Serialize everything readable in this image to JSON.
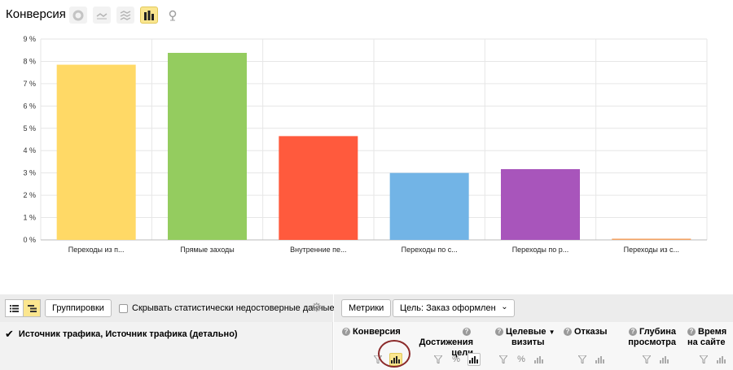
{
  "header": {
    "title": "Конверсия",
    "chart_types": [
      {
        "name": "pie-chart-icon",
        "active": false
      },
      {
        "name": "line-chart-icon",
        "active": false
      },
      {
        "name": "area-chart-icon",
        "active": false
      },
      {
        "name": "bar-chart-icon",
        "active": true
      },
      {
        "name": "map-icon",
        "active": false
      }
    ]
  },
  "chart_data": {
    "type": "bar",
    "categories": [
      "Переходы из п...",
      "Прямые заходы",
      "Внутренние пе...",
      "Переходы по с...",
      "Переходы по р...",
      "Переходы из с..."
    ],
    "values": [
      7.85,
      8.38,
      4.65,
      3.0,
      3.17,
      0.05
    ],
    "colors": [
      "#ffd966",
      "#94cc5f",
      "#ff5a3d",
      "#72b4e6",
      "#a855bb",
      "#f4a261"
    ],
    "y_ticks": [
      "0 %",
      "1 %",
      "2 %",
      "3 %",
      "4 %",
      "5 %",
      "6 %",
      "7 %",
      "8 %",
      "9 %"
    ],
    "ylim": [
      0,
      9
    ],
    "grid": true
  },
  "toolbar": {
    "grouping_button": "Группировки",
    "hide_unreliable_label": "Скрывать статистически недостоверные данные",
    "metrics_button": "Метрики",
    "goal_select": "Цель: Заказ оформлен"
  },
  "table": {
    "grouping_label": "Источник трафика, Источник трафика (детально)",
    "columns": [
      {
        "line1": "Конверсия",
        "line2": ""
      },
      {
        "line1": "Достижения",
        "line2": "цели"
      },
      {
        "line1": "Целевые",
        "line2": "визиты"
      },
      {
        "line1": "Отказы",
        "line2": ""
      },
      {
        "line1": "Глубина",
        "line2": "просмотра"
      },
      {
        "line1": "Время",
        "line2": "на сайте"
      }
    ],
    "percent_symbol": "%",
    "sort_arrow": "▼"
  }
}
